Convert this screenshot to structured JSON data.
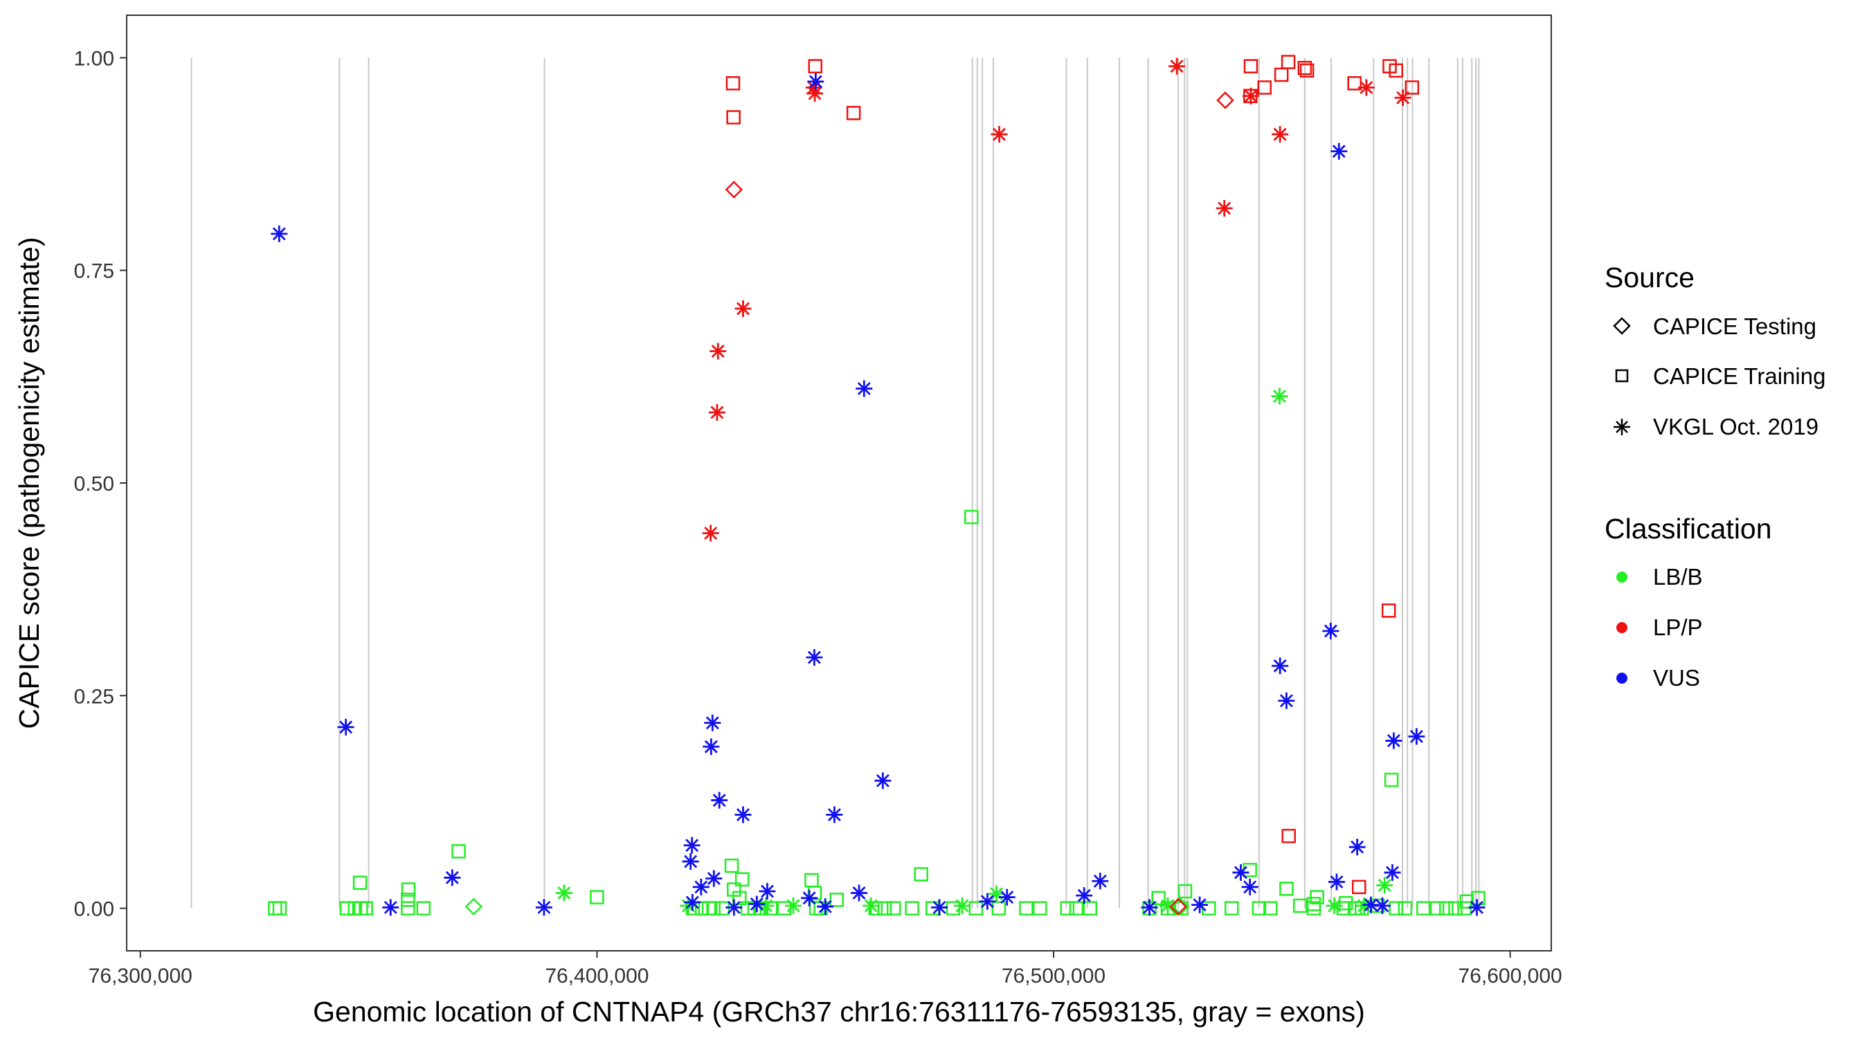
{
  "chart_data": {
    "type": "scatter",
    "title": "",
    "xlabel": "Genomic location of CNTNAP4 (GRCh37 chr16:76311176-76593135, gray = exons)",
    "ylabel": "CAPICE score (pathogenicity estimate)",
    "xlim": [
      76297000,
      76609000
    ],
    "ylim": [
      -0.05,
      1.05
    ],
    "x_ticks": [
      76300000,
      76400000,
      76500000,
      76600000
    ],
    "x_tick_labels": [
      "76,300,000",
      "76,400,000",
      "76,500,000",
      "76,600,000"
    ],
    "y_ticks": [
      0,
      0.25,
      0.5,
      0.75,
      1.0
    ],
    "y_tick_labels": [
      "0.00",
      "0.25",
      "0.50",
      "0.75",
      "1.00"
    ],
    "exons": [
      76311176,
      76343600,
      76350000,
      76388500,
      76482200,
      76483300,
      76484400,
      76486800,
      76502800,
      76507400,
      76514400,
      76520700,
      76527300,
      76528700,
      76529300,
      76545000,
      76555000,
      76560800,
      76570100,
      76576400,
      76577500,
      76578600,
      76582200,
      76588500,
      76589600,
      76591600,
      76592500,
      76593135
    ],
    "colors": {
      "LB/B": "#22ee22",
      "LP/P": "#ee1111",
      "VUS": "#1111ee"
    },
    "legend": {
      "source_title": "Source",
      "source_items": [
        {
          "label": "CAPICE Testing",
          "shape": "diamond"
        },
        {
          "label": "CAPICE Training",
          "shape": "square"
        },
        {
          "label": "VKGL Oct. 2019",
          "shape": "asterisk"
        }
      ],
      "class_title": "Classification",
      "class_items": [
        {
          "label": "LB/B",
          "color": "#22ee22"
        },
        {
          "label": "LP/P",
          "color": "#ee1111"
        },
        {
          "label": "VUS",
          "color": "#1111ee"
        }
      ]
    },
    "series": [
      {
        "name": "CAPICE Training / LP/P",
        "shape": "square",
        "class": "LP/P",
        "points": [
          [
            76429800,
            0.97
          ],
          [
            76429900,
            0.93
          ],
          [
            76447800,
            0.99
          ],
          [
            76456200,
            0.935
          ],
          [
            76543200,
            0.99
          ],
          [
            76543100,
            0.955
          ],
          [
            76546200,
            0.965
          ],
          [
            76549900,
            0.98
          ],
          [
            76551400,
            0.995
          ],
          [
            76555000,
            0.988
          ],
          [
            76555500,
            0.985
          ],
          [
            76565900,
            0.97
          ],
          [
            76575000,
            0.985
          ],
          [
            76578500,
            0.965
          ],
          [
            76573600,
            0.99
          ],
          [
            76551500,
            0.085
          ],
          [
            76566900,
            0.025
          ],
          [
            76573400,
            0.35
          ]
        ]
      },
      {
        "name": "CAPICE Testing / LP/P",
        "shape": "diamond",
        "class": "LP/P",
        "points": [
          [
            76430000,
            0.845
          ],
          [
            76537600,
            0.95
          ],
          [
            76527300,
            0.002
          ]
        ]
      },
      {
        "name": "VKGL Oct. 2019 / LP/P",
        "shape": "asterisk",
        "class": "LP/P",
        "points": [
          [
            76447500,
            0.965
          ],
          [
            76447700,
            0.958
          ],
          [
            76488100,
            0.91
          ],
          [
            76527000,
            0.99
          ],
          [
            76543200,
            0.955
          ],
          [
            76549600,
            0.91
          ],
          [
            76537400,
            0.823
          ],
          [
            76568500,
            0.965
          ],
          [
            76576500,
            0.953
          ],
          [
            76432000,
            0.705
          ],
          [
            76426500,
            0.655
          ],
          [
            76426300,
            0.583
          ],
          [
            76424900,
            0.441
          ]
        ]
      },
      {
        "name": "CAPICE Training / LB/B",
        "shape": "square",
        "class": "LB/B",
        "points": [
          [
            76329500,
            0.0
          ],
          [
            76330500,
            0.0
          ],
          [
            76345200,
            0.0
          ],
          [
            76347000,
            0.0
          ],
          [
            76348300,
            0.0
          ],
          [
            76349400,
            0.0
          ],
          [
            76348100,
            0.03
          ],
          [
            76358700,
            0.022
          ],
          [
            76358600,
            0.01
          ],
          [
            76358600,
            0.0
          ],
          [
            76362000,
            0.0
          ],
          [
            76369700,
            0.067
          ],
          [
            76400000,
            0.013
          ],
          [
            76421000,
            0.0
          ],
          [
            76423000,
            0.0
          ],
          [
            76424500,
            0.0
          ],
          [
            76425500,
            0.0
          ],
          [
            76427500,
            0.0
          ],
          [
            76429500,
            0.05
          ],
          [
            76430000,
            0.022
          ],
          [
            76431200,
            0.012
          ],
          [
            76431800,
            0.034
          ],
          [
            76433000,
            0.0
          ],
          [
            76434500,
            0.0
          ],
          [
            76436000,
            0.0
          ],
          [
            76438000,
            0.0
          ],
          [
            76441000,
            0.0
          ],
          [
            76447000,
            0.033
          ],
          [
            76447700,
            0.018
          ],
          [
            76448000,
            0.0
          ],
          [
            76449000,
            0.0
          ],
          [
            76452500,
            0.01
          ],
          [
            76461000,
            0.0
          ],
          [
            76463000,
            0.0
          ],
          [
            76465000,
            0.0
          ],
          [
            76469000,
            0.0
          ],
          [
            76471000,
            0.04
          ],
          [
            76473500,
            0.0
          ],
          [
            76478000,
            0.0
          ],
          [
            76482000,
            0.46
          ],
          [
            76483000,
            0.0
          ],
          [
            76488000,
            0.0
          ],
          [
            76494000,
            0.0
          ],
          [
            76497000,
            0.0
          ],
          [
            76503000,
            0.0
          ],
          [
            76505000,
            0.0
          ],
          [
            76508000,
            0.0
          ],
          [
            76521000,
            0.0
          ],
          [
            76523000,
            0.012
          ],
          [
            76525000,
            0.0
          ],
          [
            76528000,
            0.0
          ],
          [
            76528800,
            0.02
          ],
          [
            76534000,
            0.0
          ],
          [
            76539000,
            0.0
          ],
          [
            76543000,
            0.045
          ],
          [
            76545000,
            0.0
          ],
          [
            76547500,
            0.0
          ],
          [
            76551000,
            0.023
          ],
          [
            76554000,
            0.003
          ],
          [
            76557000,
            0.0
          ],
          [
            76557700,
            0.013
          ],
          [
            76557000,
            0.005
          ],
          [
            76563500,
            0.0
          ],
          [
            76564000,
            0.006
          ],
          [
            76566000,
            0.0
          ],
          [
            76567500,
            0.0
          ],
          [
            76571000,
            0.003
          ],
          [
            76574000,
            0.151
          ],
          [
            76575000,
            0.0
          ],
          [
            76577000,
            0.0
          ],
          [
            76581000,
            0.0
          ],
          [
            76584000,
            0.0
          ],
          [
            76586000,
            0.0
          ],
          [
            76588000,
            0.0
          ],
          [
            76590000,
            0.0
          ],
          [
            76590500,
            0.008
          ],
          [
            76593000,
            0.012
          ]
        ]
      },
      {
        "name": "CAPICE Testing / LB/B",
        "shape": "diamond",
        "class": "LB/B",
        "points": [
          [
            76373000,
            0.002
          ],
          [
            76527800,
            0.002
          ]
        ]
      },
      {
        "name": "VKGL Oct. 2019 / LB/B",
        "shape": "asterisk",
        "class": "LB/B",
        "points": [
          [
            76392800,
            0.018
          ],
          [
            76549500,
            0.602
          ],
          [
            76572500,
            0.027
          ],
          [
            76420000,
            0.003
          ],
          [
            76437000,
            0.003
          ],
          [
            76443000,
            0.003
          ],
          [
            76460000,
            0.003
          ],
          [
            76480000,
            0.003
          ],
          [
            76487500,
            0.017
          ],
          [
            76525000,
            0.003
          ],
          [
            76561500,
            0.003
          ],
          [
            76568000,
            0.003
          ]
        ]
      },
      {
        "name": "VKGL Oct. 2019 / VUS",
        "shape": "asterisk",
        "class": "VUS",
        "points": [
          [
            76330400,
            0.793
          ],
          [
            76345000,
            0.213
          ],
          [
            76354800,
            0.001
          ],
          [
            76368300,
            0.036
          ],
          [
            76388400,
            0.001
          ],
          [
            76447900,
            0.972
          ],
          [
            76458500,
            0.611
          ],
          [
            76447600,
            0.295
          ],
          [
            76425300,
            0.218
          ],
          [
            76425000,
            0.19
          ],
          [
            76462600,
            0.15
          ],
          [
            76426800,
            0.127
          ],
          [
            76432000,
            0.11
          ],
          [
            76452000,
            0.11
          ],
          [
            76420800,
            0.074
          ],
          [
            76420500,
            0.055
          ],
          [
            76425600,
            0.035
          ],
          [
            76422800,
            0.025
          ],
          [
            76457400,
            0.018
          ],
          [
            76420900,
            0.007
          ],
          [
            76430000,
            0.001
          ],
          [
            76435000,
            0.005
          ],
          [
            76437300,
            0.02
          ],
          [
            76446500,
            0.012
          ],
          [
            76450000,
            0.002
          ],
          [
            76475000,
            0.001
          ],
          [
            76485500,
            0.008
          ],
          [
            76489800,
            0.013
          ],
          [
            76506700,
            0.015
          ],
          [
            76510200,
            0.032
          ],
          [
            76521000,
            0.001
          ],
          [
            76532000,
            0.004
          ],
          [
            76541000,
            0.042
          ],
          [
            76543000,
            0.025
          ],
          [
            76549600,
            0.285
          ],
          [
            76551000,
            0.244
          ],
          [
            76562500,
            0.89
          ],
          [
            76560700,
            0.326
          ],
          [
            76562000,
            0.031
          ],
          [
            76566500,
            0.072
          ],
          [
            76574500,
            0.197
          ],
          [
            76579500,
            0.202
          ],
          [
            76574200,
            0.042
          ],
          [
            76569500,
            0.004
          ],
          [
            76572000,
            0.003
          ],
          [
            76592700,
            0.001
          ]
        ]
      }
    ]
  }
}
